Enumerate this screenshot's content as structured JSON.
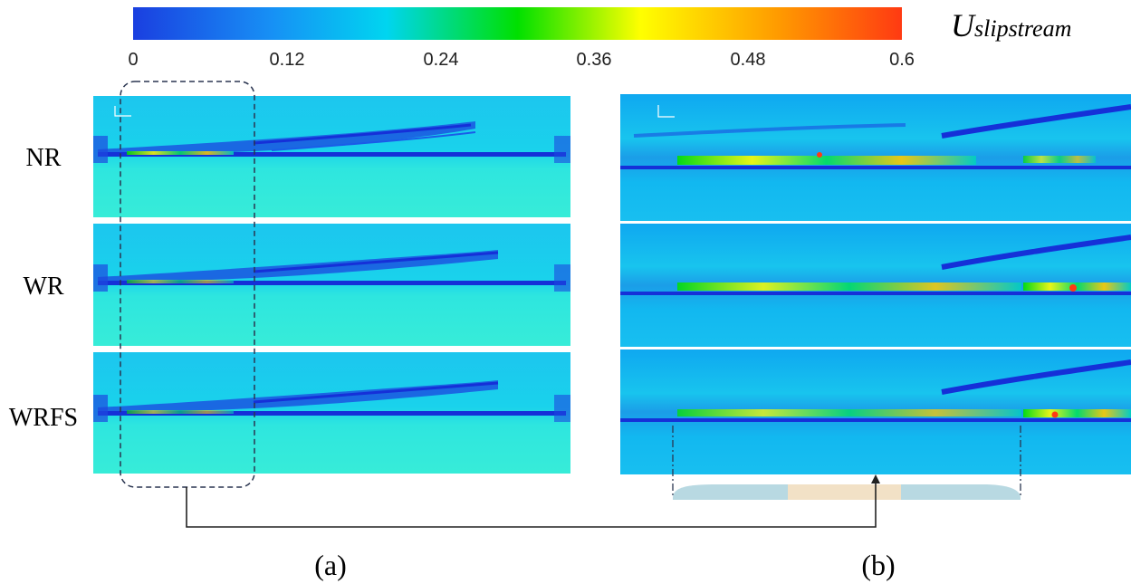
{
  "colorbar": {
    "symbol": "U",
    "subscript": "slipstream",
    "ticks": [
      "0",
      "0.12",
      "0.24",
      "0.36",
      "0.48",
      "0.6"
    ],
    "colors": [
      "#1a3fe0",
      "#00b7ff",
      "#00ffd0",
      "#00e000",
      "#ffff00",
      "#ff9a00",
      "#ff3a12"
    ]
  },
  "row_labels": [
    "NR",
    "WR",
    "WRFS"
  ],
  "panel_labels": {
    "a": "(a)",
    "b": "(b)"
  },
  "colors": {
    "field_bg": "#2ee8e2",
    "field_upper": "#1fc9ee",
    "wake_dark": "#1530d8",
    "wake_hot": "#ff3b12",
    "train_light": "#b8d9e2",
    "train_mid": "#f2e1c6"
  }
}
